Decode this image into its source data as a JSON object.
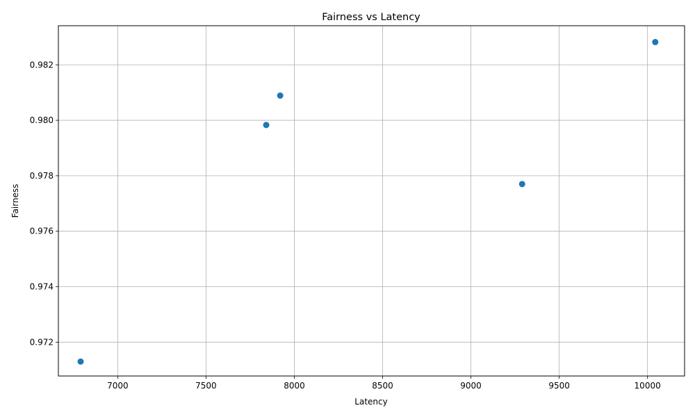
{
  "chart_data": {
    "type": "scatter",
    "title": "Fairness vs Latency",
    "xlabel": "Latency",
    "ylabel": "Fairness",
    "xlim": [
      6664,
      10210
    ],
    "ylim": [
      0.97078,
      0.98341
    ],
    "xticks": [
      7000,
      7500,
      8000,
      8500,
      9000,
      9500,
      10000
    ],
    "xtick_labels": [
      "7000",
      "7500",
      "8000",
      "8500",
      "9000",
      "9500",
      "10000"
    ],
    "yticks": [
      0.972,
      0.974,
      0.976,
      0.978,
      0.98,
      0.982
    ],
    "ytick_labels": [
      "0.972",
      "0.974",
      "0.976",
      "0.978",
      "0.980",
      "0.982"
    ],
    "grid": true,
    "legend": false,
    "color": "#1f77b4",
    "points": [
      {
        "x": 6790,
        "y": 0.9713
      },
      {
        "x": 7841,
        "y": 0.97983
      },
      {
        "x": 7920,
        "y": 0.98089
      },
      {
        "x": 9290,
        "y": 0.9777
      },
      {
        "x": 10044,
        "y": 0.98282
      }
    ]
  }
}
